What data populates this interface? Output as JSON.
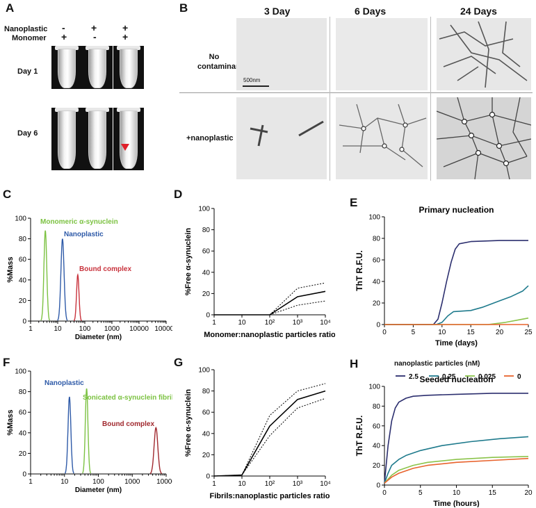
{
  "panel_A": {
    "label": "A",
    "row_labels": {
      "nanoplastic": "Nanoplastic",
      "monomer": "Monomer"
    },
    "columns": [
      {
        "nanoplastic": "-",
        "monomer": "+"
      },
      {
        "nanoplastic": "+",
        "monomer": "-"
      },
      {
        "nanoplastic": "+",
        "monomer": "+"
      }
    ],
    "day1": "Day 1",
    "day6": "Day 6"
  },
  "panel_B": {
    "label": "B",
    "col_titles": [
      "3 Day",
      "6 Days",
      "24  Days"
    ],
    "row1": "No contaminants",
    "row2": "+nanoplastic",
    "scale": "500nm"
  },
  "panel_C": {
    "label": "C",
    "chart_data": {
      "type": "line",
      "title": "",
      "xlabel": "Diameter (nm)",
      "ylabel": "%Mass",
      "xscale": "log",
      "xlim": [
        1,
        100000
      ],
      "xticks": [
        "1",
        "10",
        "100",
        "1000",
        "10000",
        "100000"
      ],
      "ylim": [
        0,
        100
      ],
      "yticks": [
        "0",
        "20",
        "40",
        "60",
        "80",
        "100"
      ],
      "series": [
        {
          "name": "Monomeric α-synuclein",
          "color": "#7cc242",
          "peak_x": 3.5,
          "peak_y": 88
        },
        {
          "name": "Nanoplastic",
          "color": "#2e5aa8",
          "peak_x": 15,
          "peak_y": 80
        },
        {
          "name": "Bound complex",
          "color": "#c8323c",
          "peak_x": 55,
          "peak_y": 45
        }
      ]
    }
  },
  "panel_D": {
    "label": "D",
    "chart_data": {
      "type": "line",
      "title": "",
      "xlabel": "Monomer:nanoplastic particles ratio",
      "ylabel": "%Free α-synuclein",
      "xscale": "log",
      "xlim": [
        1,
        10000
      ],
      "xticks": [
        "1",
        "10",
        "10²",
        "10³",
        "10⁴"
      ],
      "ylim": [
        0,
        100
      ],
      "yticks": [
        "0",
        "20",
        "40",
        "60",
        "80",
        "100"
      ],
      "x": [
        1,
        10,
        100,
        1000,
        10000
      ],
      "mean": [
        0,
        0,
        0,
        17,
        22
      ],
      "upper": [
        0,
        0,
        0,
        25,
        30
      ],
      "lower": [
        0,
        0,
        0,
        9,
        13
      ]
    }
  },
  "panel_E": {
    "label": "E",
    "chart_data": {
      "type": "line",
      "title": "Primary nucleation",
      "xlabel": "Time (days)",
      "ylabel": "ThT R.F.U.",
      "xlim": [
        0,
        25
      ],
      "xticks": [
        "0",
        "5",
        "10",
        "15",
        "20",
        "25"
      ],
      "ylim": [
        0,
        100
      ],
      "yticks": [
        "0",
        "20",
        "40",
        "60",
        "80",
        "100"
      ],
      "series": [
        {
          "name": "2.5",
          "color": "#2b2e6e",
          "x": [
            0,
            8.5,
            9.3,
            10,
            10.8,
            11.6,
            12.3,
            13,
            15,
            20,
            25
          ],
          "y": [
            0,
            0,
            5,
            20,
            40,
            58,
            70,
            75,
            77,
            78,
            78
          ]
        },
        {
          "name": "0.25",
          "color": "#1e7a8c",
          "x": [
            0,
            9,
            10,
            11,
            12,
            15,
            17,
            20,
            22,
            24,
            25
          ],
          "y": [
            0,
            0,
            2,
            8,
            12,
            13,
            16,
            22,
            26,
            31,
            36
          ]
        },
        {
          "name": "0.025",
          "color": "#8bc34a",
          "x": [
            0,
            18,
            21,
            23,
            25
          ],
          "y": [
            0,
            0,
            2,
            4,
            6
          ]
        },
        {
          "name": "0",
          "color": "#e8622c",
          "x": [
            0,
            25
          ],
          "y": [
            0,
            0
          ]
        }
      ]
    }
  },
  "panel_F": {
    "label": "F",
    "chart_data": {
      "type": "line",
      "title": "",
      "xlabel": "Diameter (nm)",
      "ylabel": "%Mass",
      "xscale": "log",
      "xlim": [
        1,
        10000
      ],
      "xticks": [
        "1",
        "10",
        "100",
        "1000",
        "10000"
      ],
      "ylim": [
        0,
        100
      ],
      "yticks": [
        "0",
        "20",
        "40",
        "60",
        "80",
        "100"
      ],
      "series": [
        {
          "name": "Nanoplastic",
          "color": "#2e5aa8",
          "peak_x": 14,
          "peak_y": 75
        },
        {
          "name": "Sonicated α-synuclein fibrils",
          "color": "#7cc242",
          "peak_x": 45,
          "peak_y": 83
        },
        {
          "name": "Bound complex",
          "color": "#a0282e",
          "peak_x": 5000,
          "peak_y": 45
        }
      ]
    }
  },
  "panel_G": {
    "label": "G",
    "chart_data": {
      "type": "line",
      "title": "",
      "xlabel": "Fibrils:nanoplastic particles ratio",
      "ylabel": "%Free α-synuclein",
      "xscale": "log",
      "xlim": [
        1,
        10000
      ],
      "xticks": [
        "1",
        "10",
        "10²",
        "10³",
        "10⁴"
      ],
      "ylim": [
        0,
        100
      ],
      "yticks": [
        "0",
        "20",
        "40",
        "60",
        "80",
        "100"
      ],
      "x": [
        1,
        10,
        100,
        1000,
        10000
      ],
      "mean": [
        0,
        1,
        47,
        72,
        80
      ],
      "upper": [
        0,
        1,
        57,
        80,
        87
      ],
      "lower": [
        0,
        1,
        38,
        64,
        73
      ]
    }
  },
  "legend_H": {
    "title": "nanoplastic particles (nM)",
    "items": [
      {
        "name": "2.5",
        "color": "#2b2e6e"
      },
      {
        "name": "0.25",
        "color": "#1e7a8c"
      },
      {
        "name": "0.025",
        "color": "#8bc34a"
      },
      {
        "name": "0",
        "color": "#e8622c"
      }
    ]
  },
  "panel_H": {
    "label": "H",
    "chart_data": {
      "type": "line",
      "title": "Seeded nucleation",
      "xlabel": "Time (hours)",
      "ylabel": "ThT R.F.U.",
      "xlim": [
        0,
        20
      ],
      "xticks": [
        "0",
        "5",
        "10",
        "15",
        "20"
      ],
      "ylim": [
        0,
        100
      ],
      "yticks": [
        "0",
        "20",
        "40",
        "60",
        "80",
        "100"
      ],
      "series": [
        {
          "name": "2.5",
          "color": "#2b2e6e",
          "x": [
            0,
            0.5,
            1,
            1.5,
            2,
            3,
            4,
            6,
            10,
            15,
            20
          ],
          "y": [
            2,
            40,
            65,
            78,
            84,
            88,
            90,
            91,
            92,
            93,
            93
          ]
        },
        {
          "name": "0.25",
          "color": "#1e7a8c",
          "x": [
            0,
            0.5,
            1,
            2,
            3,
            5,
            8,
            12,
            16,
            20
          ],
          "y": [
            2,
            12,
            20,
            26,
            30,
            35,
            40,
            44,
            47,
            49
          ]
        },
        {
          "name": "0.025",
          "color": "#8bc34a",
          "x": [
            0,
            1,
            2,
            4,
            6,
            10,
            15,
            20
          ],
          "y": [
            2,
            10,
            15,
            20,
            23,
            26,
            28,
            29
          ]
        },
        {
          "name": "0",
          "color": "#e8622c",
          "x": [
            0,
            1,
            2,
            4,
            6,
            10,
            15,
            20
          ],
          "y": [
            2,
            8,
            12,
            17,
            20,
            23,
            25,
            27
          ]
        }
      ]
    }
  }
}
